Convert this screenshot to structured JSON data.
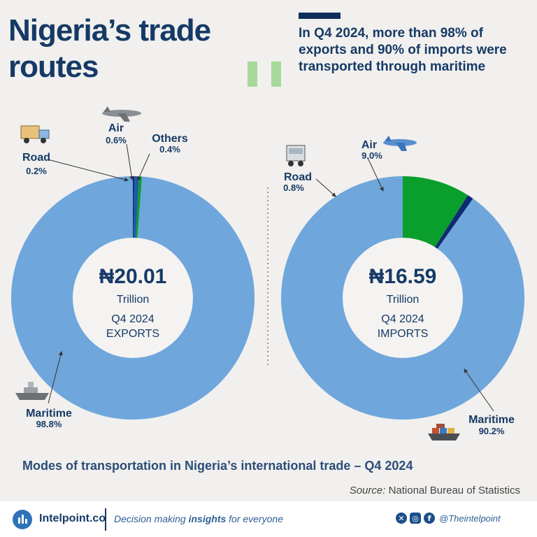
{
  "header": {
    "title": "Nigeria’s trade routes",
    "subtitle": "In Q4 2024, more than 98% of exports and 90% of imports were transported through maritime"
  },
  "chart_data": [
    {
      "type": "pie",
      "center_value": "₦20.01",
      "center_unit": "Trillion",
      "center_period": "Q4 2024",
      "center_label": "EXPORTS",
      "slices": [
        {
          "name": "Road",
          "value": 0.2,
          "label": "0.2%",
          "color": "#0d2a73"
        },
        {
          "name": "Air",
          "value": 0.6,
          "label": "0.6%",
          "color": "#1e5aa8"
        },
        {
          "name": "Others",
          "value": 0.4,
          "label": "0.4%",
          "color": "#0a9e2c"
        },
        {
          "name": "Maritime",
          "value": 98.8,
          "label": "98.8%",
          "color": "#6fa6dc"
        }
      ]
    },
    {
      "type": "pie",
      "center_value": "₦16.59",
      "center_unit": "Trillion",
      "center_period": "Q4 2024",
      "center_label": "IMPORTS",
      "slices": [
        {
          "name": "Air",
          "value": 9.0,
          "label": "9.0%",
          "color": "#0a9e2c"
        },
        {
          "name": "Road",
          "value": 0.8,
          "label": "0.8%",
          "color": "#0d2a73"
        },
        {
          "name": "Maritime",
          "value": 90.2,
          "label": "90.2%",
          "color": "#6fa6dc"
        }
      ]
    }
  ],
  "caption": "Modes of transportation in Nigeria’s international trade – Q4 2024",
  "source": {
    "prefix": "Source:",
    "text": "National Bureau of Statistics"
  },
  "footer": {
    "brand": "Intelpoint.co",
    "tagline_before": "Decision making",
    "tagline_bold": "insights",
    "tagline_after": "for everyone",
    "handle": "@Theintelpoint",
    "icons": [
      "x-icon",
      "instagram-icon",
      "facebook-icon"
    ]
  }
}
